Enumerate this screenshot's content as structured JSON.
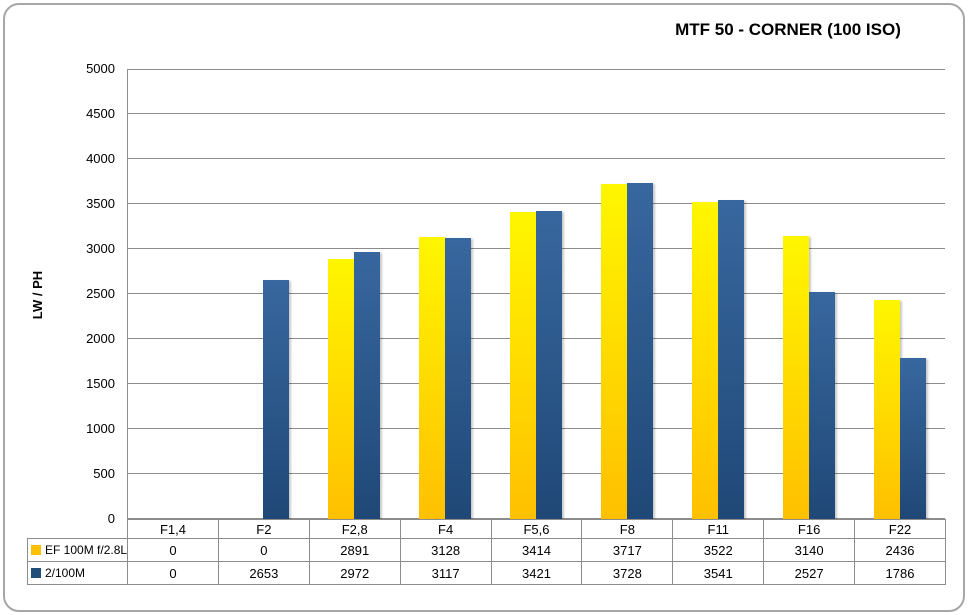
{
  "chart_data": {
    "type": "bar",
    "title": "MTF 50 - CORNER (100 ISO)",
    "ylabel": "LW / PH",
    "categories": [
      "F1,4",
      "F2",
      "F2,8",
      "F4",
      "F5,6",
      "F8",
      "F11",
      "F16",
      "F22"
    ],
    "series": [
      {
        "name": "EF 100M f/2.8L",
        "values": [
          0,
          0,
          2891,
          3128,
          3414,
          3717,
          3522,
          3140,
          2436
        ],
        "bar_color_top": "#fff600",
        "bar_color_bottom": "#ffc000",
        "legend_key_color": "#ffc000"
      },
      {
        "name": "2/100M",
        "values": [
          0,
          2653,
          2972,
          3117,
          3421,
          3728,
          3541,
          2527,
          1786
        ],
        "bar_color_top": "#38679f",
        "bar_color_bottom": "#1f4876",
        "legend_key_color": "#1f4e79"
      }
    ],
    "ylim": [
      0,
      5000
    ],
    "ytick_step": 500,
    "grid": true,
    "legend_position": "data-table-left",
    "grid_color": "#8c8c8c",
    "axis_color": "#8c8c8c",
    "table_border_color": "#8c8c8c",
    "frame_border_color": "#a6a6a6"
  }
}
